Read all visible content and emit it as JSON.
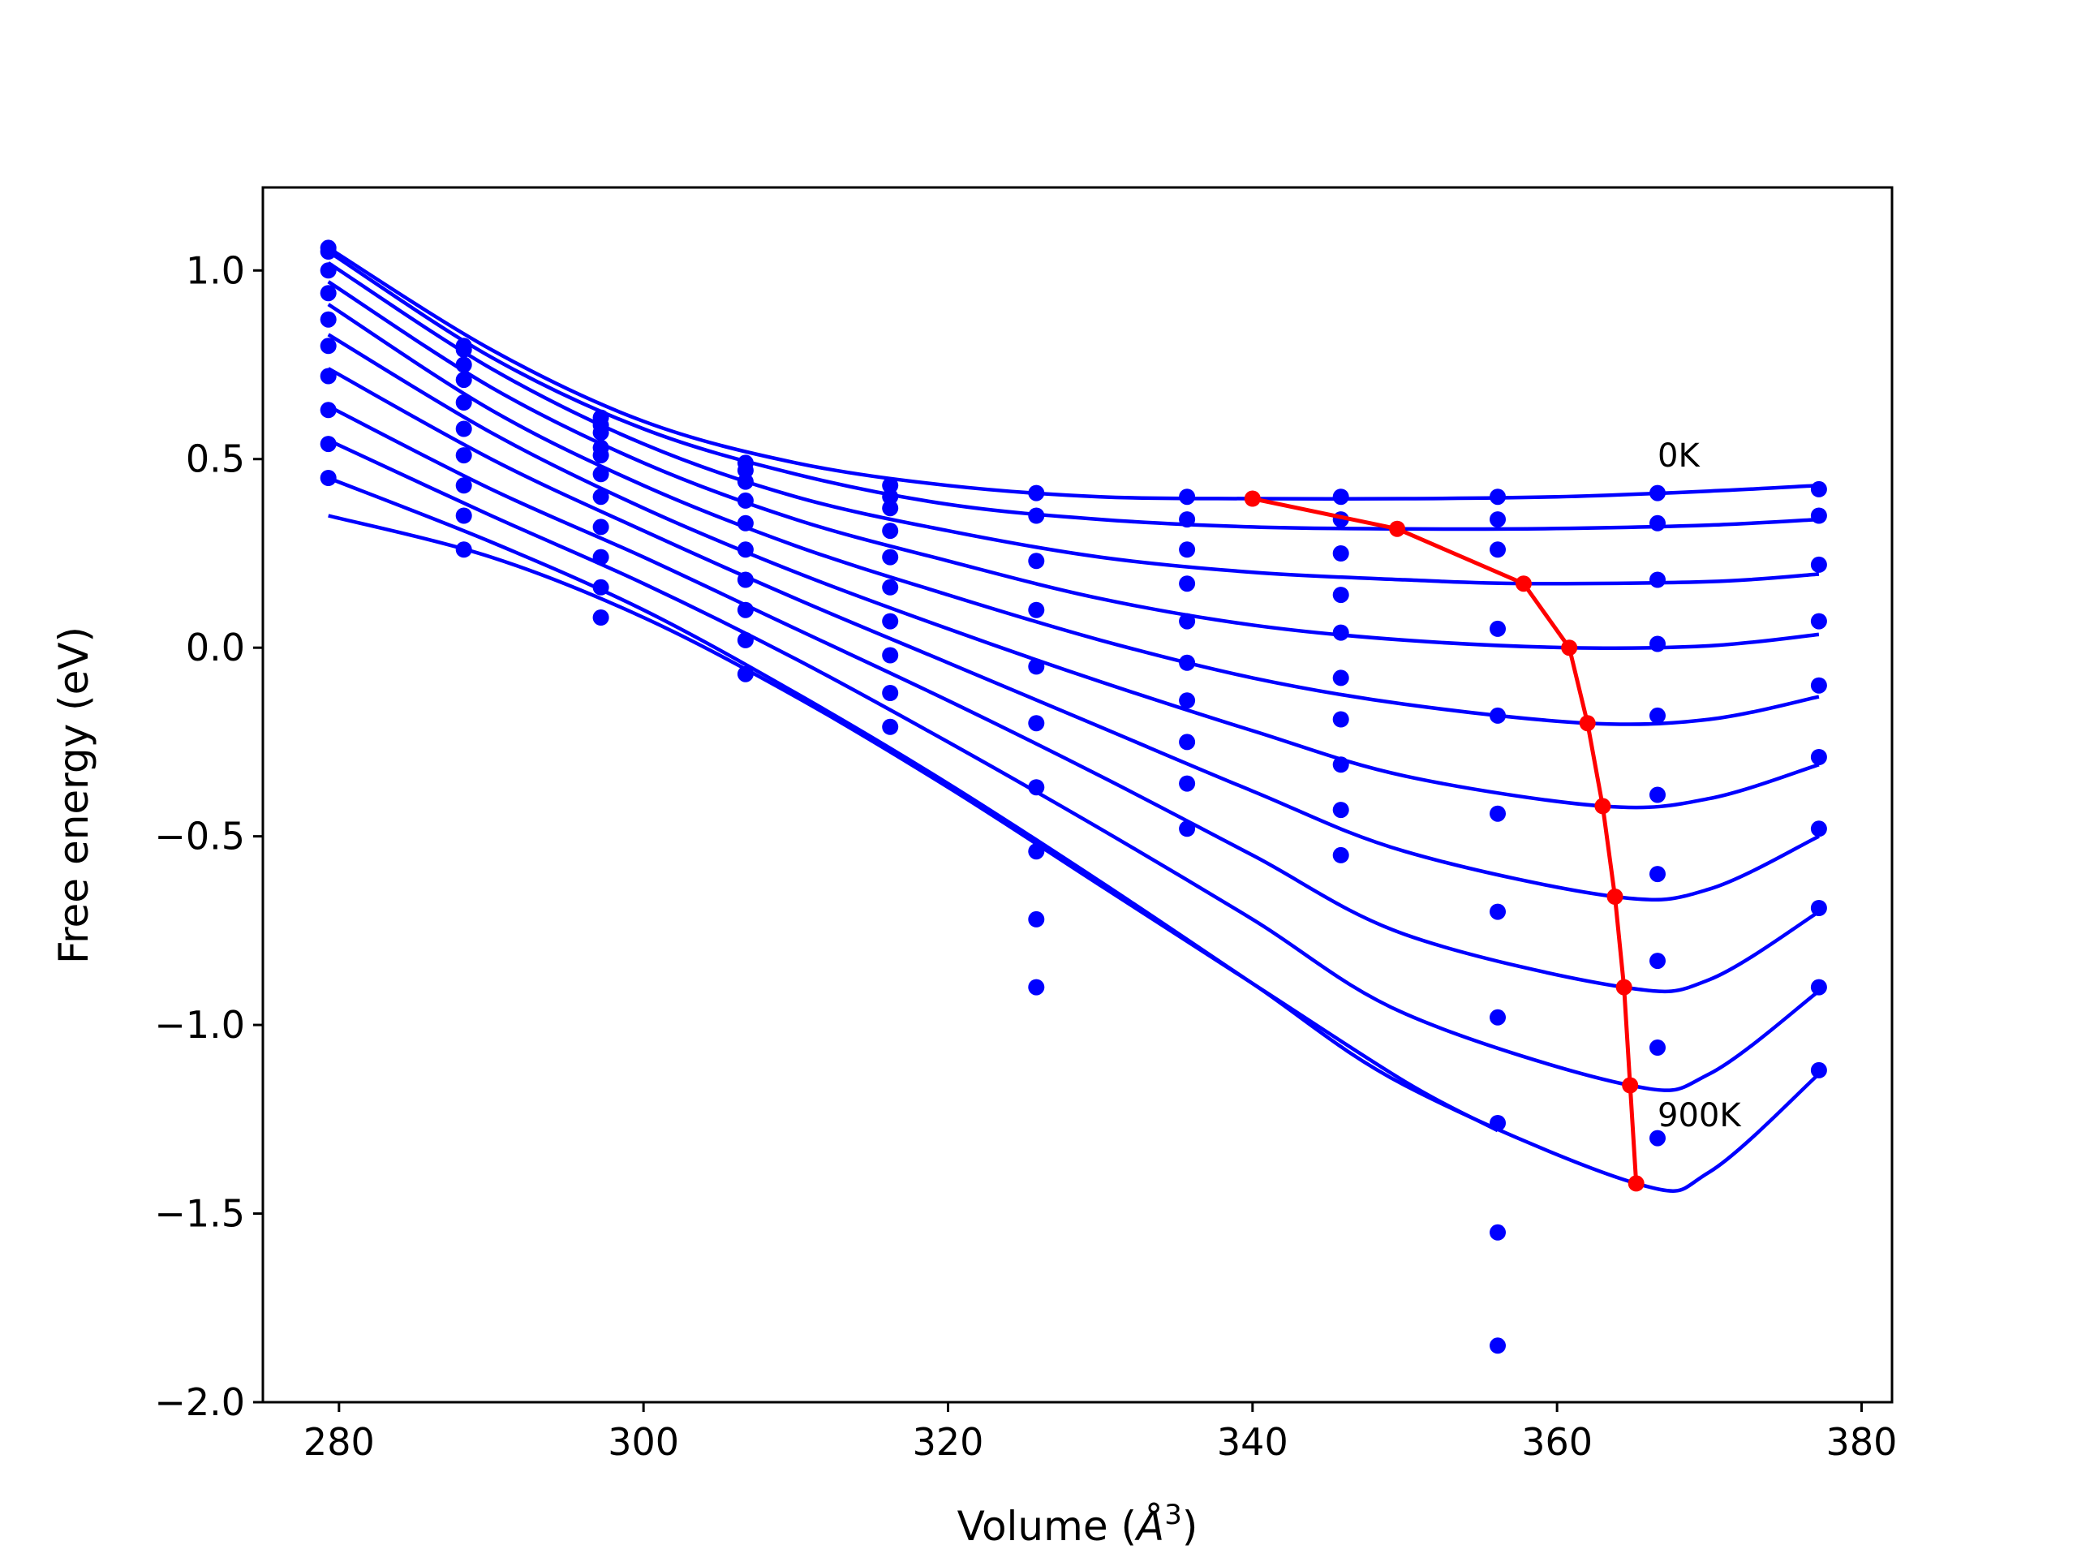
{
  "chart_data": {
    "type": "line",
    "title": "",
    "xlabel": "Volume (",
    "xlabel_symbol": "Å",
    "xlabel_power": "3",
    "xlabel_suffix": ")",
    "ylabel": "Free energy (eV)",
    "xlim": [
      275,
      382
    ],
    "ylim": [
      -2.0,
      1.22
    ],
    "xticks": [
      280,
      300,
      320,
      340,
      360,
      380
    ],
    "yticks": [
      1.0,
      0.5,
      0.0,
      -0.5,
      -1.0,
      -1.5,
      -2.0
    ],
    "ytick_labels": [
      "1.0",
      "0.5",
      "0.0",
      "−0.5",
      "−1.0",
      "−1.5",
      "−2.0"
    ],
    "grid": false,
    "colors": {
      "fit": "#0000ff",
      "points": "#0000ff",
      "minimum": "#ff0000"
    },
    "annotations": [
      {
        "text": "0K",
        "x": 366.5,
        "y": 0.45
      },
      {
        "text": "900K",
        "x": 366.5,
        "y": -1.3
      }
    ],
    "volumes": [
      279.3,
      288.2,
      297.2,
      306.7,
      316.2,
      325.8,
      335.7,
      345.8,
      356.1,
      366.6,
      377.2
    ],
    "series": [
      {
        "points": [
          1.06,
          0.8,
          0.61,
          0.49,
          0.43,
          0.41,
          0.4,
          0.4,
          0.4,
          0.41,
          0.42
        ],
        "fit": [
          [
            279.3,
            1.06
          ],
          [
            290,
            0.79
          ],
          [
            300,
            0.6
          ],
          [
            310,
            0.49
          ],
          [
            320,
            0.43
          ],
          [
            330,
            0.4
          ],
          [
            340,
            0.395
          ],
          [
            350,
            0.395
          ],
          [
            360,
            0.4
          ],
          [
            370,
            0.415
          ],
          [
            377.2,
            0.43
          ]
        ]
      },
      {
        "points": [
          1.05,
          0.79,
          0.59,
          0.47,
          0.4,
          0.35,
          0.34,
          0.34,
          0.34,
          0.33,
          0.35
        ],
        "fit": [
          [
            279.3,
            1.05
          ],
          [
            290,
            0.77
          ],
          [
            300,
            0.58
          ],
          [
            310,
            0.46
          ],
          [
            320,
            0.38
          ],
          [
            330,
            0.34
          ],
          [
            340,
            0.32
          ],
          [
            349.5,
            0.315
          ],
          [
            360,
            0.316
          ],
          [
            370,
            0.325
          ],
          [
            377.2,
            0.34
          ]
        ]
      },
      {
        "points": [
          1.0,
          0.75,
          0.57,
          0.44,
          0.37,
          0.23,
          0.26,
          0.25,
          0.26,
          0.18,
          0.22
        ],
        "fit": [
          [
            279.3,
            1.02
          ],
          [
            290,
            0.74
          ],
          [
            300,
            0.54
          ],
          [
            310,
            0.4
          ],
          [
            320,
            0.31
          ],
          [
            330,
            0.24
          ],
          [
            340,
            0.2
          ],
          [
            350,
            0.18
          ],
          [
            357.8,
            0.17
          ],
          [
            370,
            0.175
          ],
          [
            377.2,
            0.195
          ]
        ]
      },
      {
        "points": [
          0.94,
          0.71,
          0.53,
          0.39,
          0.31,
          0.1,
          0.17,
          0.14,
          0.05,
          0.01,
          0.07
        ],
        "fit": [
          [
            279.3,
            0.97
          ],
          [
            290,
            0.69
          ],
          [
            300,
            0.49
          ],
          [
            310,
            0.34
          ],
          [
            320,
            0.23
          ],
          [
            330,
            0.13
          ],
          [
            340,
            0.06
          ],
          [
            350,
            0.02
          ],
          [
            360.8,
            0.0
          ],
          [
            370,
            0.005
          ],
          [
            377.2,
            0.035
          ]
        ]
      },
      {
        "points": [
          0.87,
          0.65,
          0.51,
          0.33,
          0.24,
          -0.05,
          0.07,
          0.04,
          -0.18,
          -0.18,
          -0.1
        ],
        "fit": [
          [
            279.3,
            0.91
          ],
          [
            290,
            0.63
          ],
          [
            300,
            0.43
          ],
          [
            310,
            0.27
          ],
          [
            320,
            0.14
          ],
          [
            330,
            0.02
          ],
          [
            340,
            -0.08
          ],
          [
            350,
            -0.15
          ],
          [
            362,
            -0.2
          ],
          [
            370,
            -0.19
          ],
          [
            377.2,
            -0.13
          ]
        ]
      },
      {
        "points": [
          0.8,
          0.58,
          0.46,
          0.26,
          0.16,
          -0.2,
          -0.04,
          -0.08,
          -0.44,
          -0.39,
          -0.29
        ],
        "fit": [
          [
            279.3,
            0.83
          ],
          [
            290,
            0.57
          ],
          [
            300,
            0.37
          ],
          [
            310,
            0.2
          ],
          [
            320,
            0.05
          ],
          [
            330,
            -0.09
          ],
          [
            340,
            -0.22
          ],
          [
            350,
            -0.34
          ],
          [
            363,
            -0.42
          ],
          [
            370,
            -0.4
          ],
          [
            377.2,
            -0.31
          ]
        ]
      },
      {
        "points": [
          0.72,
          0.51,
          0.4,
          0.18,
          0.07,
          -0.37,
          -0.14,
          -0.19,
          -0.7,
          -0.6,
          -0.48
        ],
        "fit": [
          [
            279.3,
            0.74
          ],
          [
            290,
            0.5
          ],
          [
            300,
            0.31
          ],
          [
            310,
            0.13
          ],
          [
            320,
            -0.04
          ],
          [
            330,
            -0.21
          ],
          [
            340,
            -0.38
          ],
          [
            350,
            -0.54
          ],
          [
            363.8,
            -0.66
          ],
          [
            370,
            -0.64
          ],
          [
            377.2,
            -0.5
          ]
        ]
      },
      {
        "points": [
          0.63,
          0.43,
          0.32,
          0.1,
          -0.02,
          -0.54,
          -0.25,
          -0.31,
          -0.98,
          -0.83,
          -0.69
        ],
        "fit": [
          [
            279.3,
            0.64
          ],
          [
            290,
            0.42
          ],
          [
            300,
            0.24
          ],
          [
            310,
            0.05
          ],
          [
            320,
            -0.14
          ],
          [
            330,
            -0.34
          ],
          [
            340,
            -0.55
          ],
          [
            350,
            -0.76
          ],
          [
            364.4,
            -0.9
          ],
          [
            370,
            -0.88
          ],
          [
            377.2,
            -0.7
          ]
        ]
      },
      {
        "points": [
          0.54,
          0.35,
          0.24,
          0.02,
          -0.12,
          -0.72,
          -0.36,
          -0.43,
          -1.26,
          -1.06,
          -0.9
        ],
        "fit": [
          [
            279.3,
            0.55
          ],
          [
            290,
            0.35
          ],
          [
            300,
            0.17
          ],
          [
            310,
            -0.03
          ],
          [
            320,
            -0.25
          ],
          [
            330,
            -0.48
          ],
          [
            340,
            -0.72
          ],
          [
            350,
            -0.97
          ],
          [
            364.8,
            -1.16
          ],
          [
            370,
            -1.13
          ],
          [
            377.2,
            -0.91
          ]
        ]
      },
      {
        "points": [
          0.45,
          0.26,
          0.16,
          -0.07,
          -0.21,
          -0.9,
          -0.48,
          -0.55,
          -1.55,
          -1.3,
          -1.12
        ],
        "fit": [
          [
            279.3,
            0.45
          ],
          [
            290,
            0.28
          ],
          [
            300,
            0.1
          ],
          [
            310,
            -0.12
          ],
          [
            320,
            -0.36
          ],
          [
            330,
            -0.62
          ],
          [
            340,
            -0.89
          ],
          [
            350,
            -1.16
          ],
          [
            365.2,
            -1.42
          ],
          [
            370,
            -1.39
          ],
          [
            377.2,
            -1.13
          ]
        ]
      },
      {
        "points": [
          null,
          null,
          0.08,
          null,
          null,
          null,
          null,
          null,
          -1.85,
          null,
          null
        ],
        "fit": [
          [
            279.3,
            0.35
          ],
          [
            290,
            0.24
          ],
          [
            300,
            0.08
          ],
          [
            310,
            -0.13
          ],
          [
            320,
            -0.37
          ],
          [
            330,
            -0.63
          ],
          [
            340,
            -0.89
          ],
          [
            350,
            -1.15
          ],
          [
            356.1,
            -1.28
          ]
        ]
      }
    ],
    "minimum_path": [
      [
        340.0,
        0.395
      ],
      [
        349.5,
        0.315
      ],
      [
        357.8,
        0.17
      ],
      [
        360.8,
        0.0
      ],
      [
        362.0,
        -0.2
      ],
      [
        363.0,
        -0.42
      ],
      [
        363.8,
        -0.66
      ],
      [
        364.4,
        -0.9
      ],
      [
        364.8,
        -1.16
      ],
      [
        365.2,
        -1.42
      ]
    ]
  }
}
